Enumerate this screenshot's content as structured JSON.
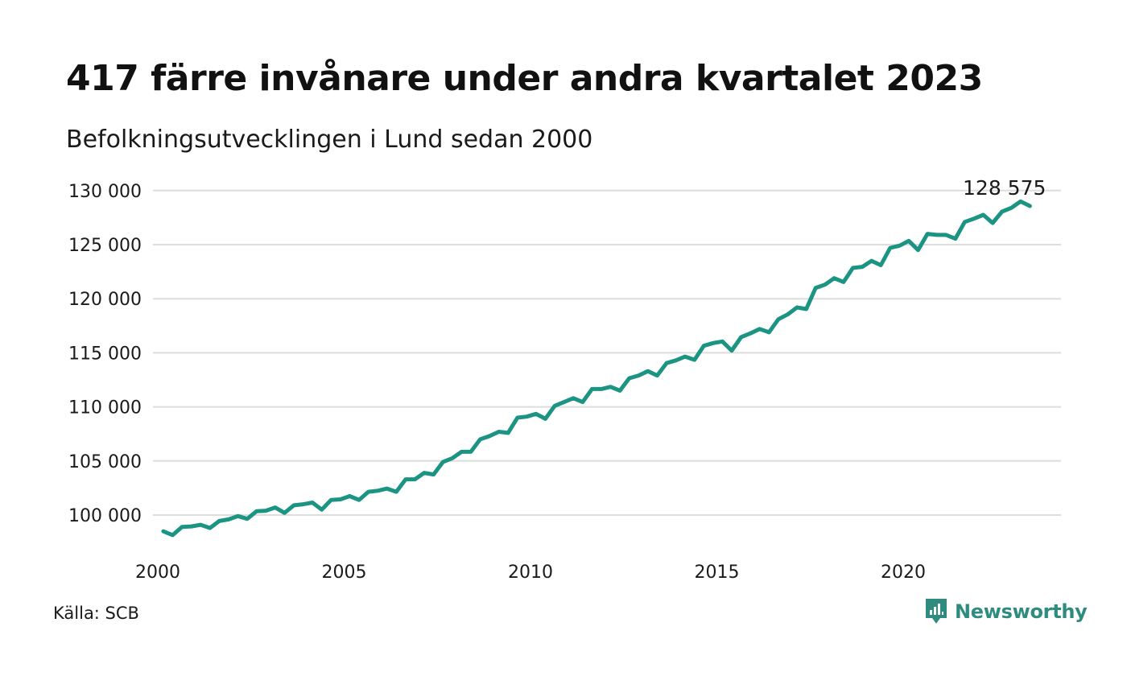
{
  "header": {
    "title": "417 färre invånare under andra kvartalet 2023",
    "subtitle": "Befolkningsutvecklingen i Lund sedan 2000"
  },
  "footer": {
    "source": "Källa: SCB",
    "brand": "Newsworthy",
    "brand_icon": "newsworthy-logo-icon"
  },
  "colors": {
    "line": "#1c9483",
    "grid": "#dddddd",
    "brand": "#2e8c7e"
  },
  "chart_data": {
    "type": "line",
    "x_start": "2000-03",
    "x_step": "quarter",
    "x_ticks": [
      2000,
      2005,
      2010,
      2015,
      2020
    ],
    "y_ticks": [
      100000,
      105000,
      110000,
      115000,
      120000,
      125000,
      130000
    ],
    "y_tick_labels": [
      "100 000",
      "105 000",
      "110 000",
      "115 000",
      "120 000",
      "125 000",
      "130 000"
    ],
    "ylim": [
      97500,
      130500
    ],
    "xlim": [
      2000,
      2024
    ],
    "grid": true,
    "end_label": "128 575",
    "series": [
      {
        "values": [
          98500,
          98150,
          98900,
          98950,
          99100,
          98800,
          99450,
          99600,
          99900,
          99650,
          100350,
          100400,
          100700,
          100200,
          100900,
          101000,
          101150,
          100500,
          101400,
          101450,
          101750,
          101400,
          102150,
          102250,
          102450,
          102150,
          103300,
          103300,
          103900,
          103750,
          104900,
          105250,
          105850,
          105850,
          107000,
          107300,
          107700,
          107600,
          109000,
          109100,
          109350,
          108900,
          110100,
          110450,
          110800,
          110450,
          111650,
          111650,
          111850,
          111500,
          112650,
          112900,
          113300,
          112900,
          114050,
          114300,
          114650,
          114350,
          115650,
          115900,
          116050,
          115200,
          116450,
          116800,
          117200,
          116900,
          118100,
          118550,
          119200,
          119050,
          121000,
          121300,
          121900,
          121550,
          122850,
          122950,
          123500,
          123100,
          124700,
          124900,
          125350,
          124500,
          126000,
          125900,
          125900,
          125550,
          127100,
          127400,
          127750,
          127000,
          128050,
          128400,
          128992,
          128575
        ]
      }
    ]
  }
}
